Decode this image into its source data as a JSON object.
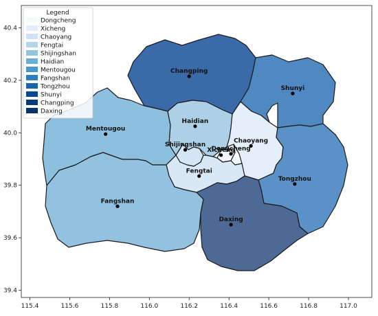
{
  "legend": {
    "title": "Legend",
    "entries": [
      {
        "name": "Dongcheng",
        "color": "#f7fbff"
      },
      {
        "name": "Xicheng",
        "color": "#e3eef9"
      },
      {
        "name": "Chaoyang",
        "color": "#cfe1f2"
      },
      {
        "name": "Fengtai",
        "color": "#b5d4e9"
      },
      {
        "name": "Shijingshan",
        "color": "#93c4de"
      },
      {
        "name": "Haidian",
        "color": "#6aaed6"
      },
      {
        "name": "Mentougou",
        "color": "#4a98c9"
      },
      {
        "name": "Fangshan",
        "color": "#2e7ebc"
      },
      {
        "name": "Tongzhou",
        "color": "#1764ab"
      },
      {
        "name": "Shunyi",
        "color": "#084a91"
      },
      {
        "name": "Changping",
        "color": "#0a3a78"
      },
      {
        "name": "Daxing",
        "color": "#08306b"
      }
    ]
  },
  "axes": {
    "x_ticks": [
      "115.4",
      "115.6",
      "115.8",
      "116.0",
      "116.2",
      "116.4",
      "116.6",
      "116.8",
      "117.0"
    ],
    "y_ticks": [
      "40.4",
      "40.2",
      "40.0",
      "39.8",
      "39.6",
      "39.4"
    ]
  },
  "districts": [
    {
      "name": "Changping",
      "lon": 116.2,
      "lat": 40.215,
      "fill": "#3a6aa8"
    },
    {
      "name": "Shunyi",
      "lon": 116.72,
      "lat": 40.15,
      "fill": "#5089c2"
    },
    {
      "name": "Mentougou",
      "lon": 115.78,
      "lat": 39.995,
      "fill": "#8dbfdf"
    },
    {
      "name": "Haidian",
      "lon": 116.23,
      "lat": 40.025,
      "fill": "#aed0e7"
    },
    {
      "name": "Chaoyang",
      "lon": 116.51,
      "lat": 39.95,
      "fill": "#e4eff9"
    },
    {
      "name": "Shijingshan",
      "lon": 116.18,
      "lat": 39.935,
      "fill": "#d4e5f3"
    },
    {
      "name": "Dongcheng",
      "lon": 116.41,
      "lat": 39.92,
      "fill": "#f7fbff"
    },
    {
      "name": "Xicheng",
      "lon": 116.36,
      "lat": 39.915,
      "fill": "#f0f6fc"
    },
    {
      "name": "Fengtai",
      "lon": 116.25,
      "lat": 39.835,
      "fill": "#d9e8f5"
    },
    {
      "name": "Tongzhou",
      "lon": 116.73,
      "lat": 39.805,
      "fill": "#5a92c8"
    },
    {
      "name": "Fangshan",
      "lon": 115.84,
      "lat": 39.72,
      "fill": "#92c2e0"
    },
    {
      "name": "Daxing",
      "lon": 116.41,
      "lat": 39.65,
      "fill": "#4d6a96"
    }
  ]
}
